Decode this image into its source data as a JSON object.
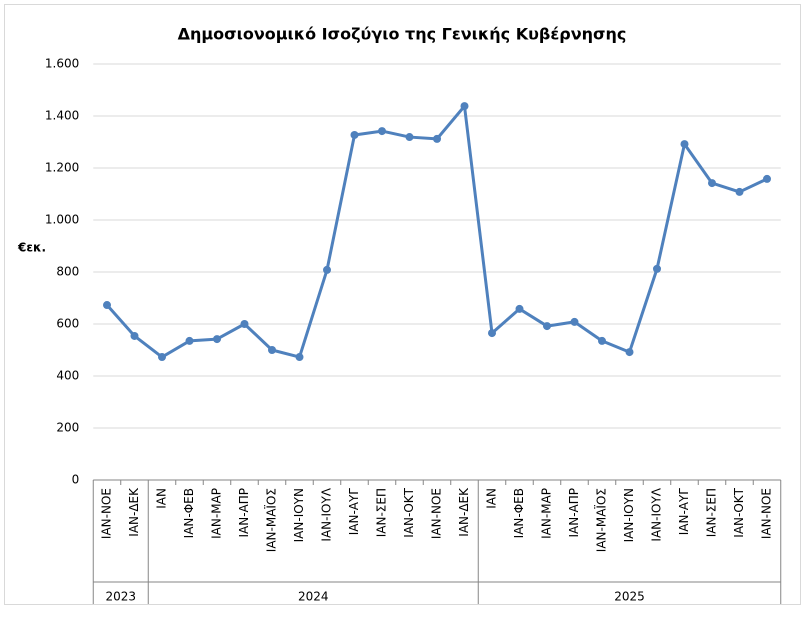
{
  "chart_data": {
    "type": "line",
    "title": "Δημοσιονομικό Ισοζύγιο της Γενικής Κυβέρνησης",
    "y_label": "€εκ.",
    "groups": [
      {
        "label": "2023",
        "categories": [
          "ΙΑΝ-ΝΟΕ",
          "ΙΑΝ-ΔΕΚ"
        ]
      },
      {
        "label": "2024",
        "categories": [
          "ΙΑΝ",
          "ΙΑΝ-ΦΕΒ",
          "ΙΑΝ-ΜΑΡ",
          "ΙΑΝ-ΑΠΡ",
          "ΙΑΝ-ΜΑΪΟΣ",
          "ΙΑΝ-ΙΟΥΝ",
          "ΙΑΝ-ΙΟΥΛ",
          "ΙΑΝ-ΑΥΓ",
          "ΙΑΝ-ΣΕΠ",
          "ΙΑΝ-ΟΚΤ",
          "ΙΑΝ-ΝΟΕ",
          "ΙΑΝ-ΔΕΚ"
        ]
      },
      {
        "label": "2025",
        "categories": [
          "ΙΑΝ",
          "ΙΑΝ-ΦΕΒ",
          "ΙΑΝ-ΜΑΡ",
          "ΙΑΝ-ΑΠΡ",
          "ΙΑΝ-ΜΑΪΟΣ",
          "ΙΑΝ-ΙΟΥΝ",
          "ΙΑΝ-ΙΟΥΛ",
          "ΙΑΝ-ΑΥΓ",
          "ΙΑΝ-ΣΕΠ",
          "ΙΑΝ-ΟΚΤ",
          "ΙΑΝ-ΝΟΕ"
        ]
      }
    ],
    "series": [
      {
        "color": "#4f81bd",
        "values": [
          673,
          554,
          473,
          535,
          542,
          600,
          500,
          473,
          808,
          1327,
          1342,
          1319,
          1312,
          1438,
          565,
          658,
          592,
          608,
          535,
          492,
          812,
          1292,
          1142,
          1108,
          1158
        ]
      }
    ],
    "ylim": [
      0,
      1600
    ],
    "yticks": [
      0,
      200,
      400,
      600,
      800,
      {
        "value": 1000,
        "label": "1.000"
      },
      {
        "value": 1200,
        "label": "1.200"
      },
      {
        "value": 1400,
        "label": "1.400"
      },
      {
        "value": 1600,
        "label": "1.600"
      }
    ],
    "grid": true
  }
}
